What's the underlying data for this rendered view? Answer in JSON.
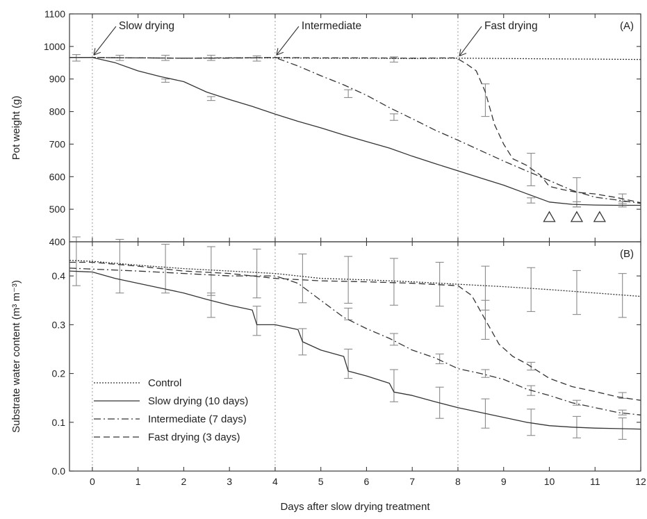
{
  "chart_data": [
    {
      "type": "line",
      "panel_label": "(A)",
      "ylabel": "Pot weight (g)",
      "xlim": [
        -0.5,
        12
      ],
      "ylim": [
        400,
        1100
      ],
      "y_ticks": [
        "400",
        "500",
        "600",
        "700",
        "800",
        "900",
        "1000",
        "1100"
      ],
      "annotations": [
        {
          "text": "Slow drying",
          "x": 0,
          "y": 965
        },
        {
          "text": "Intermediate",
          "x": 4,
          "y": 965
        },
        {
          "text": "Fast drying",
          "x": 8,
          "y": 962
        }
      ],
      "triangle_markers_x": [
        10.0,
        10.6,
        11.1
      ],
      "triangle_markers_y": 475,
      "series": [
        {
          "name": "Control",
          "style": "dotted",
          "x": [
            -0.5,
            0,
            1,
            2,
            3,
            4,
            5,
            6,
            7,
            8,
            9,
            10,
            11,
            12
          ],
          "y": [
            966,
            966,
            965,
            964,
            965,
            965,
            964,
            964,
            963,
            964,
            963,
            962,
            961,
            960
          ]
        },
        {
          "name": "Slow drying (10 days)",
          "style": "solid",
          "x": [
            -0.5,
            0,
            0.5,
            1,
            1.5,
            2,
            2.5,
            3,
            3.5,
            4,
            4.5,
            5,
            5.5,
            6,
            6.5,
            7,
            7.5,
            8,
            8.5,
            9,
            9.5,
            10,
            10.5,
            11,
            11.5,
            12
          ],
          "y": [
            966,
            966,
            950,
            925,
            907,
            892,
            860,
            837,
            816,
            792,
            770,
            750,
            728,
            708,
            688,
            663,
            640,
            618,
            596,
            574,
            548,
            522,
            515,
            513,
            512,
            512
          ]
        },
        {
          "name": "Intermediate (7 days)",
          "style": "dashdot",
          "x": [
            -0.5,
            0,
            1,
            2,
            3,
            4,
            4.5,
            5,
            5.5,
            6,
            6.5,
            7,
            7.5,
            8,
            8.5,
            9,
            9.5,
            10,
            10.5,
            11,
            11.5,
            12
          ],
          "y": [
            966,
            966,
            965,
            964,
            964,
            966,
            940,
            910,
            882,
            850,
            812,
            778,
            743,
            712,
            680,
            648,
            618,
            588,
            558,
            537,
            528,
            518
          ]
        },
        {
          "name": "Fast drying (3 days)",
          "style": "dashed",
          "x": [
            -0.5,
            0,
            1,
            2,
            3,
            4,
            5,
            6,
            7,
            7.9,
            8,
            8.2,
            8.4,
            8.6,
            8.8,
            9,
            9.2,
            9.5,
            9.8,
            10,
            10.3,
            10.6,
            11,
            11.5,
            12
          ],
          "y": [
            966,
            966,
            965,
            964,
            965,
            966,
            965,
            965,
            964,
            965,
            962,
            945,
            925,
            860,
            760,
            700,
            655,
            635,
            605,
            570,
            560,
            552,
            547,
            535,
            520
          ]
        }
      ],
      "error_bars": [
        {
          "x": -0.35,
          "y": 965,
          "err": 10
        },
        {
          "x": 0.6,
          "y": 965,
          "err": 8
        },
        {
          "x": 1.6,
          "y": 965,
          "err": 8
        },
        {
          "x": 2.6,
          "y": 965,
          "err": 8
        },
        {
          "x": 3.6,
          "y": 963,
          "err": 8
        },
        {
          "x": 6.6,
          "y": 960,
          "err": 8
        },
        {
          "x": 1.6,
          "y": 895,
          "err": 5
        },
        {
          "x": 2.6,
          "y": 840,
          "err": 6
        },
        {
          "x": 5.6,
          "y": 855,
          "err": 12
        },
        {
          "x": 6.6,
          "y": 783,
          "err": 10
        },
        {
          "x": 8.6,
          "y": 835,
          "err": 50
        },
        {
          "x": 9.6,
          "y": 622,
          "err": 50
        },
        {
          "x": 9.6,
          "y": 527,
          "err": 8
        },
        {
          "x": 10.6,
          "y": 552,
          "err": 45
        },
        {
          "x": 10.6,
          "y": 515,
          "err": 8
        },
        {
          "x": 11.6,
          "y": 532,
          "err": 15
        },
        {
          "x": 11.6,
          "y": 515,
          "err": 8
        }
      ]
    },
    {
      "type": "line",
      "panel_label": "(B)",
      "xlabel": "Days after slow drying treatment",
      "ylabel": "Substrate water content (m³ m⁻³)",
      "xlim": [
        -0.5,
        12
      ],
      "ylim": [
        0.0,
        0.47
      ],
      "x_ticks": [
        "0",
        "1",
        "2",
        "3",
        "4",
        "5",
        "6",
        "7",
        "8",
        "9",
        "10",
        "11",
        "12"
      ],
      "y_ticks": [
        "0.0",
        "0.1",
        "0.2",
        "0.3",
        "0.4"
      ],
      "legend": {
        "position": "bottom-left",
        "entries": [
          "Control",
          "Slow drying (10 days)",
          "Intermediate (7 days)",
          "Fast drying (3 days)"
        ]
      },
      "series": [
        {
          "name": "Control",
          "style": "dotted",
          "x": [
            -0.5,
            0,
            1,
            2,
            3,
            4,
            5,
            6,
            7,
            8,
            9,
            10,
            11,
            12
          ],
          "y": [
            0.432,
            0.43,
            0.422,
            0.415,
            0.41,
            0.405,
            0.395,
            0.392,
            0.388,
            0.383,
            0.378,
            0.372,
            0.365,
            0.358
          ]
        },
        {
          "name": "Slow drying (10 days)",
          "style": "solid",
          "x": [
            -0.5,
            0,
            0.5,
            1,
            1.5,
            2,
            2.5,
            3,
            3.5,
            3.6,
            4,
            4.5,
            4.6,
            5,
            5.5,
            5.6,
            6,
            6.5,
            6.6,
            7,
            7.5,
            8,
            8.5,
            9,
            9.5,
            10,
            10.5,
            11,
            11.5,
            12
          ],
          "y": [
            0.41,
            0.408,
            0.395,
            0.385,
            0.375,
            0.365,
            0.352,
            0.34,
            0.33,
            0.3,
            0.3,
            0.29,
            0.265,
            0.248,
            0.235,
            0.205,
            0.195,
            0.18,
            0.162,
            0.155,
            0.142,
            0.13,
            0.12,
            0.11,
            0.1,
            0.093,
            0.09,
            0.088,
            0.087,
            0.086
          ]
        },
        {
          "name": "Intermediate (7 days)",
          "style": "dashdot",
          "x": [
            -0.5,
            0,
            1,
            2,
            3,
            4,
            4.5,
            5,
            5.5,
            6,
            6.5,
            7,
            7.5,
            8,
            8.5,
            9,
            9.5,
            10,
            10.5,
            11,
            11.5,
            12
          ],
          "y": [
            0.416,
            0.414,
            0.41,
            0.405,
            0.4,
            0.4,
            0.385,
            0.35,
            0.315,
            0.292,
            0.272,
            0.248,
            0.232,
            0.21,
            0.2,
            0.188,
            0.168,
            0.155,
            0.14,
            0.13,
            0.12,
            0.115
          ]
        },
        {
          "name": "Fast drying (3 days)",
          "style": "dashed",
          "x": [
            -0.5,
            0,
            1,
            2,
            3,
            4,
            5,
            6,
            7,
            8,
            8.3,
            8.6,
            8.9,
            9.2,
            9.5,
            10,
            10.5,
            11,
            11.5,
            12
          ],
          "y": [
            0.428,
            0.428,
            0.42,
            0.41,
            0.405,
            0.395,
            0.39,
            0.388,
            0.385,
            0.38,
            0.36,
            0.31,
            0.26,
            0.235,
            0.22,
            0.19,
            0.173,
            0.163,
            0.152,
            0.145
          ]
        }
      ],
      "error_bars": [
        {
          "x": -0.35,
          "y": 0.43,
          "err": 0.05
        },
        {
          "x": 0.6,
          "y": 0.42,
          "err": 0.055
        },
        {
          "x": 1.6,
          "y": 0.415,
          "err": 0.05
        },
        {
          "x": 2.6,
          "y": 0.41,
          "err": 0.05
        },
        {
          "x": 3.6,
          "y": 0.405,
          "err": 0.05
        },
        {
          "x": 4.6,
          "y": 0.395,
          "err": 0.05
        },
        {
          "x": 5.6,
          "y": 0.392,
          "err": 0.048
        },
        {
          "x": 6.6,
          "y": 0.388,
          "err": 0.048
        },
        {
          "x": 7.6,
          "y": 0.383,
          "err": 0.045
        },
        {
          "x": 8.6,
          "y": 0.375,
          "err": 0.045
        },
        {
          "x": 9.6,
          "y": 0.372,
          "err": 0.045
        },
        {
          "x": 10.6,
          "y": 0.366,
          "err": 0.045
        },
        {
          "x": 11.6,
          "y": 0.36,
          "err": 0.045
        },
        {
          "x": 2.6,
          "y": 0.34,
          "err": 0.025
        },
        {
          "x": 3.6,
          "y": 0.308,
          "err": 0.03
        },
        {
          "x": 4.6,
          "y": 0.265,
          "err": 0.027
        },
        {
          "x": 5.6,
          "y": 0.22,
          "err": 0.03
        },
        {
          "x": 6.6,
          "y": 0.175,
          "err": 0.033
        },
        {
          "x": 7.6,
          "y": 0.14,
          "err": 0.032
        },
        {
          "x": 8.6,
          "y": 0.118,
          "err": 0.03
        },
        {
          "x": 9.6,
          "y": 0.1,
          "err": 0.027
        },
        {
          "x": 10.6,
          "y": 0.09,
          "err": 0.022
        },
        {
          "x": 11.6,
          "y": 0.087,
          "err": 0.022
        },
        {
          "x": 5.6,
          "y": 0.322,
          "err": 0.012
        },
        {
          "x": 6.6,
          "y": 0.27,
          "err": 0.012
        },
        {
          "x": 7.6,
          "y": 0.23,
          "err": 0.01
        },
        {
          "x": 8.6,
          "y": 0.2,
          "err": 0.008
        },
        {
          "x": 9.6,
          "y": 0.165,
          "err": 0.01
        },
        {
          "x": 10.6,
          "y": 0.14,
          "err": 0.005
        },
        {
          "x": 11.6,
          "y": 0.12,
          "err": 0.005
        },
        {
          "x": 8.6,
          "y": 0.31,
          "err": 0.04
        },
        {
          "x": 9.6,
          "y": 0.215,
          "err": 0.008
        },
        {
          "x": 11.6,
          "y": 0.155,
          "err": 0.006
        }
      ]
    }
  ]
}
